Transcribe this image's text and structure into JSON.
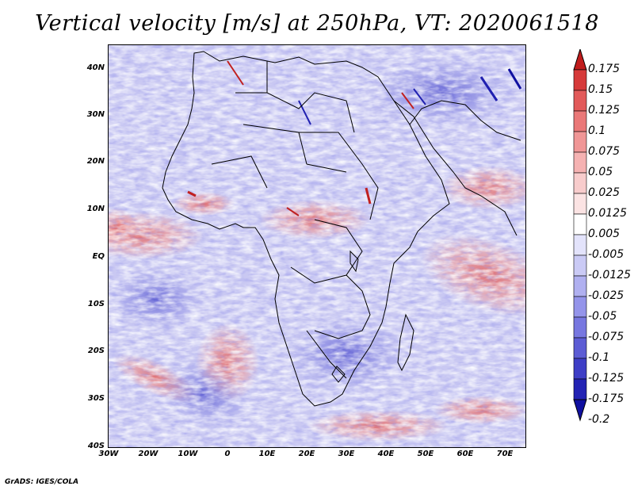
{
  "title": "Vertical velocity [m/s] at 250hPa, VT: 2020061518",
  "footer": "GrADS: IGES/COLA",
  "lat_labels": [
    "40N",
    "30N",
    "20N",
    "10N",
    "EQ",
    "10S",
    "20S",
    "30S",
    "40S"
  ],
  "lon_labels": [
    "30W",
    "20W",
    "10W",
    "0",
    "10E",
    "20E",
    "30E",
    "40E",
    "50E",
    "60E",
    "70E"
  ],
  "colorbar": {
    "labels": [
      "0.175",
      "0.15",
      "0.125",
      "0.1",
      "0.075",
      "0.05",
      "0.025",
      "0.0125",
      "0.005",
      "-0.005",
      "-0.0125",
      "-0.025",
      "-0.05",
      "-0.075",
      "-0.1",
      "-0.125",
      "-0.175",
      "-0.2"
    ],
    "colors": [
      "#c01c1c",
      "#d63a3a",
      "#e25a5a",
      "#ea7878",
      "#f09696",
      "#f5b2b2",
      "#f8cccc",
      "#fbe3e3",
      "#ffffff",
      "#e3e3fb",
      "#cacaf5",
      "#b0b0f0",
      "#9494ea",
      "#7777e0",
      "#5c5cd4",
      "#3e3ec6",
      "#2323b4",
      "#1010a0"
    ]
  },
  "field_colors": {
    "base": "#c9c8f2",
    "positive": "#f2a0a0",
    "strong_positive": "#d23030",
    "negative": "#6e6ee0",
    "strong_negative": "#1c1cb0"
  }
}
